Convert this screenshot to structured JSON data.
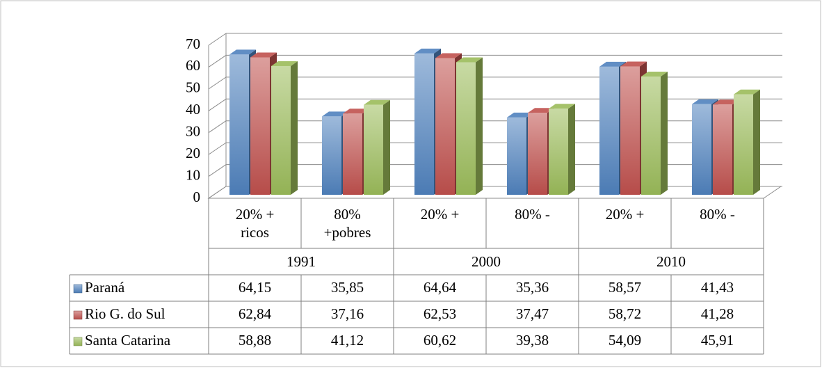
{
  "chart_data": {
    "type": "bar3d",
    "categories": [
      "20% +\nricos",
      "80%\n+pobres",
      "20% +",
      "80% -",
      "20% +",
      "80% -"
    ],
    "groups": [
      "1991",
      "2000",
      "2010"
    ],
    "series": [
      {
        "name": "Paraná",
        "color": "#4f81bd",
        "values": [
          64.15,
          35.85,
          64.64,
          35.36,
          58.57,
          41.43
        ],
        "value_labels": [
          "64,15",
          "35,85",
          "64,64",
          "35,36",
          "58,57",
          "41,43"
        ]
      },
      {
        "name": "Rio G. do Sul",
        "color": "#c0504d",
        "values": [
          62.84,
          37.16,
          62.53,
          37.47,
          58.72,
          41.28
        ],
        "value_labels": [
          "62,84",
          "37,16",
          "62,53",
          "37,47",
          "58,72",
          "41,28"
        ]
      },
      {
        "name": "Santa Catarina",
        "color": "#9bbb59",
        "values": [
          58.88,
          41.12,
          60.62,
          39.38,
          54.09,
          45.91
        ],
        "value_labels": [
          "58,88",
          "41,12",
          "60,62",
          "39,38",
          "54,09",
          "45,91"
        ]
      }
    ],
    "ylim": [
      0,
      70
    ],
    "yticks": [
      0,
      10,
      20,
      30,
      40,
      50,
      60,
      70
    ],
    "grid": true
  }
}
